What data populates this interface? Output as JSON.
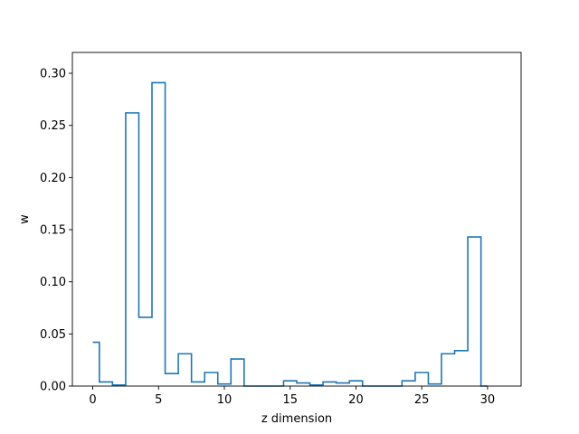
{
  "chart_data": {
    "type": "line",
    "style": "step",
    "xlabel": "z dimension",
    "ylabel": "w",
    "xlim": [
      -1.55,
      32.55
    ],
    "ylim": [
      0,
      0.32
    ],
    "xticks": [
      0,
      5,
      10,
      15,
      20,
      25,
      30
    ],
    "yticks": [
      0.0,
      0.05,
      0.1,
      0.15,
      0.2,
      0.25,
      0.3
    ],
    "xtick_labels": [
      "0",
      "5",
      "10",
      "15",
      "20",
      "25",
      "30"
    ],
    "ytick_labels": [
      "0.00",
      "0.05",
      "0.10",
      "0.15",
      "0.20",
      "0.25",
      "0.30"
    ],
    "grid": false,
    "line_color": "#1f77b4",
    "series": [
      {
        "x": [
          0,
          1,
          2,
          3,
          4,
          5,
          6,
          7,
          8,
          9,
          10,
          11,
          12,
          13,
          14,
          15,
          16,
          17,
          18,
          19,
          20,
          21,
          22,
          23,
          24,
          25,
          26,
          27,
          28,
          29,
          30
        ],
        "values": [
          0.042,
          0.004,
          0.001,
          0.262,
          0.066,
          0.291,
          0.012,
          0.031,
          0.004,
          0.013,
          0.002,
          0.026,
          0.0,
          0.0,
          0.0,
          0.005,
          0.003,
          0.001,
          0.004,
          0.003,
          0.005,
          0.0,
          0.0,
          0.0,
          0.005,
          0.013,
          0.002,
          0.031,
          0.034,
          0.143,
          0.0
        ]
      }
    ]
  }
}
